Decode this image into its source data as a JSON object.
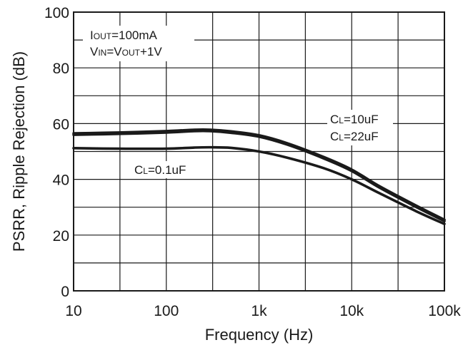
{
  "chart_data": {
    "type": "line",
    "x_scale": "log",
    "xlim": [
      10,
      100000
    ],
    "ylim": [
      0,
      100
    ],
    "grid": true,
    "xlabel": "Frequency (Hz)",
    "ylabel": "PSRR, Ripple Rejection (dB)",
    "x_ticks": [
      {
        "value": 10,
        "label": "10"
      },
      {
        "value": 100,
        "label": "100"
      },
      {
        "value": 1000,
        "label": "1k"
      },
      {
        "value": 10000,
        "label": "10k"
      },
      {
        "value": 100000,
        "label": "100k"
      }
    ],
    "y_ticks": [
      {
        "value": 0,
        "label": "0"
      },
      {
        "value": 20,
        "label": "20"
      },
      {
        "value": 40,
        "label": "40"
      },
      {
        "value": 60,
        "label": "60"
      },
      {
        "value": 80,
        "label": "80"
      },
      {
        "value": 100,
        "label": "100"
      }
    ],
    "annotations": {
      "conditions": [
        {
          "main": "I",
          "sub": "OUT",
          "rest": "=100mA"
        },
        {
          "main": "V",
          "sub": "IN",
          "rest": "=V",
          "sub2": "OUT",
          "rest2": "+1V"
        }
      ],
      "cl_high": [
        {
          "main": "C",
          "sub": "L",
          "rest": "=10uF"
        },
        {
          "main": "C",
          "sub": "L",
          "rest": "=22uF"
        }
      ],
      "cl_low": {
        "main": "C",
        "sub": "L",
        "rest": "=0.1uF"
      }
    },
    "series": [
      {
        "x": [
          10,
          30,
          100,
          200,
          300,
          500,
          1000,
          2000,
          5000,
          10000,
          20000,
          50000,
          100000
        ],
        "y": [
          56.5,
          56.8,
          57.3,
          57.8,
          57.8,
          57.2,
          55.8,
          53.0,
          48.0,
          43.5,
          37.5,
          30.5,
          25.5
        ]
      },
      {
        "x": [
          10,
          30,
          100,
          200,
          300,
          500,
          1000,
          2000,
          5000,
          10000,
          20000,
          50000,
          100000
        ],
        "y": [
          56.0,
          56.3,
          56.8,
          57.3,
          57.3,
          56.7,
          55.3,
          52.5,
          47.5,
          43.0,
          37.0,
          30.0,
          25.0
        ]
      },
      {
        "x": [
          10,
          30,
          100,
          200,
          300,
          500,
          1000,
          2000,
          5000,
          10000,
          20000,
          50000,
          100000
        ],
        "y": [
          51.2,
          51.0,
          51.0,
          51.4,
          51.5,
          51.3,
          50.0,
          47.8,
          44.0,
          40.0,
          35.0,
          28.5,
          24.0
        ]
      }
    ]
  }
}
